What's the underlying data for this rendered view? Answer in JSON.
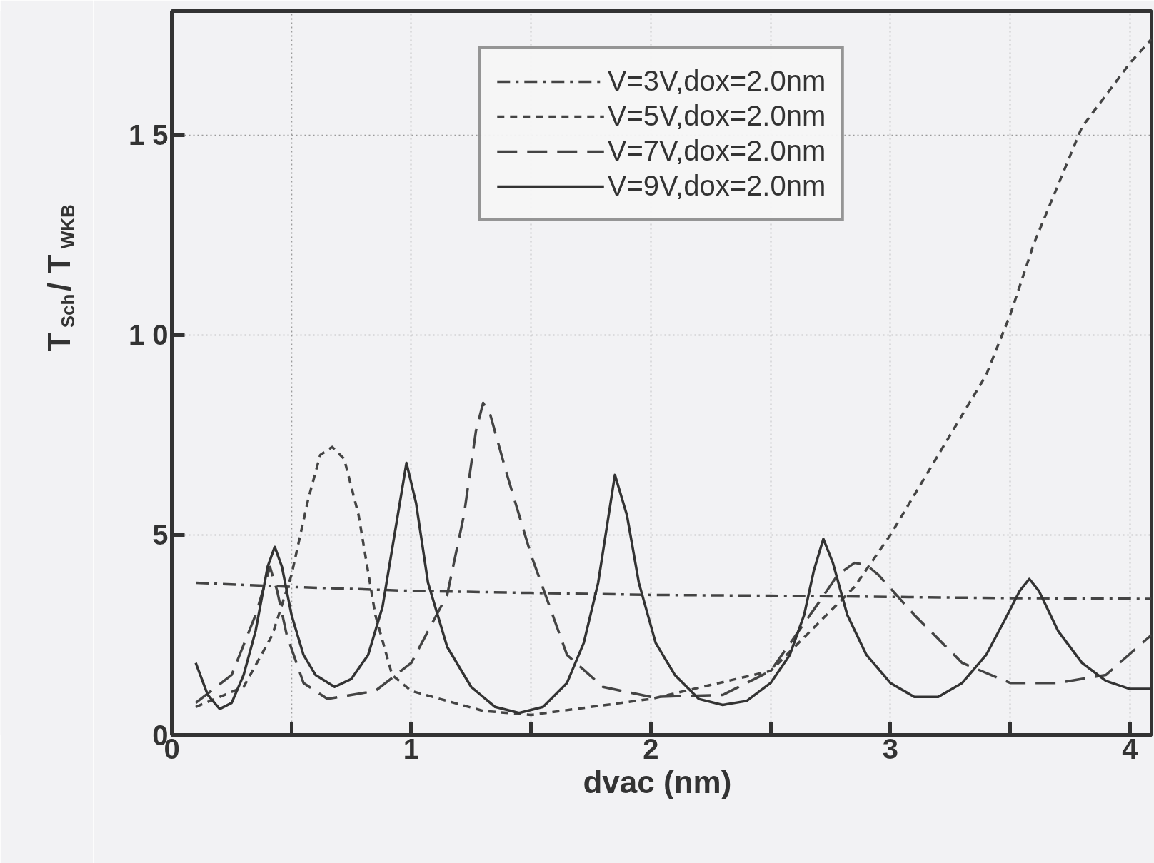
{
  "chart_data": {
    "type": "line",
    "xlabel": "dvac  (nm)",
    "ylabel": "T$_{Sch}$/ T$_{WKB}$",
    "xlim": [
      0,
      4.09
    ],
    "ylim": [
      0,
      18.1
    ],
    "xticks": [
      0,
      {
        "value": 0.5,
        "label": null
      },
      1,
      {
        "value": 1.5,
        "label": null
      },
      2,
      {
        "value": 2.5,
        "label": null
      },
      3,
      {
        "value": 3.5,
        "label": null
      },
      4
    ],
    "yticks": [
      0,
      5,
      {
        "value": 10,
        "label": "1 0"
      },
      {
        "value": 15,
        "label": "1 5"
      }
    ],
    "grid": true,
    "legend": "top",
    "marker": "none",
    "series": [
      {
        "name": "V=3V,dox=2.0nm",
        "color": "#444444",
        "line_style": "dashdot",
        "x": [
          0.1,
          0.5,
          1.0,
          1.5,
          2.0,
          2.5,
          3.0,
          3.5,
          4.09
        ],
        "values": [
          3.8,
          3.7,
          3.6,
          3.55,
          3.5,
          3.48,
          3.45,
          3.42,
          3.4
        ]
      },
      {
        "name": "V=5V,dox=2.0nm",
        "color": "#444444",
        "line_style": "dotted",
        "x": [
          0.1,
          0.3,
          0.42,
          0.5,
          0.57,
          0.62,
          0.67,
          0.72,
          0.78,
          0.85,
          0.92,
          1.0,
          1.3,
          1.5,
          2.0,
          2.5,
          2.7,
          2.85,
          3.0,
          3.2,
          3.4,
          3.5,
          3.6,
          3.8,
          4.0,
          4.09
        ],
        "values": [
          0.7,
          1.2,
          2.5,
          4.0,
          5.9,
          7.0,
          7.2,
          6.9,
          5.5,
          3.0,
          1.5,
          1.1,
          0.6,
          0.5,
          0.9,
          1.6,
          2.8,
          3.7,
          5.0,
          7.0,
          9.0,
          10.5,
          12.3,
          15.2,
          16.8,
          17.4
        ]
      },
      {
        "name": "V=7V,dox=2.0nm",
        "color": "#444444",
        "line_style": "dashed",
        "x": [
          0.1,
          0.25,
          0.35,
          0.38,
          0.41,
          0.44,
          0.48,
          0.55,
          0.65,
          0.85,
          1.0,
          1.15,
          1.22,
          1.27,
          1.3,
          1.33,
          1.4,
          1.5,
          1.65,
          1.8,
          2.0,
          2.3,
          2.5,
          2.7,
          2.78,
          2.85,
          2.9,
          2.95,
          3.1,
          3.3,
          3.5,
          3.7,
          3.9,
          4.09
        ],
        "values": [
          0.8,
          1.5,
          3.0,
          3.6,
          4.2,
          3.6,
          2.5,
          1.3,
          0.9,
          1.1,
          1.8,
          3.5,
          5.5,
          7.6,
          8.3,
          8.0,
          6.5,
          4.5,
          2.0,
          1.2,
          0.95,
          1.0,
          1.6,
          3.3,
          4.0,
          4.3,
          4.25,
          4.0,
          3.0,
          1.8,
          1.3,
          1.3,
          1.5,
          2.5
        ]
      },
      {
        "name": "V=9V,dox=2.0nm",
        "color": "#333333",
        "line_style": "solid",
        "x": [
          0.1,
          0.15,
          0.2,
          0.25,
          0.3,
          0.35,
          0.4,
          0.43,
          0.46,
          0.5,
          0.55,
          0.6,
          0.68,
          0.75,
          0.82,
          0.88,
          0.93,
          0.98,
          1.02,
          1.07,
          1.15,
          1.25,
          1.35,
          1.45,
          1.55,
          1.65,
          1.72,
          1.78,
          1.85,
          1.9,
          1.95,
          2.02,
          2.1,
          2.2,
          2.3,
          2.4,
          2.5,
          2.58,
          2.64,
          2.68,
          2.72,
          2.76,
          2.82,
          2.9,
          3.0,
          3.1,
          3.2,
          3.3,
          3.4,
          3.48,
          3.54,
          3.58,
          3.62,
          3.7,
          3.8,
          3.9,
          4.0,
          4.09
        ],
        "values": [
          1.8,
          1.0,
          0.65,
          0.8,
          1.5,
          2.6,
          4.2,
          4.7,
          4.2,
          3.0,
          2.0,
          1.5,
          1.2,
          1.4,
          2.0,
          3.2,
          5.0,
          6.8,
          5.8,
          3.8,
          2.2,
          1.2,
          0.7,
          0.55,
          0.7,
          1.3,
          2.3,
          3.8,
          6.5,
          5.5,
          3.8,
          2.3,
          1.5,
          0.9,
          0.75,
          0.85,
          1.3,
          2.0,
          3.0,
          4.1,
          4.9,
          4.3,
          3.0,
          2.0,
          1.3,
          0.95,
          0.95,
          1.3,
          2.0,
          2.9,
          3.6,
          3.9,
          3.6,
          2.6,
          1.8,
          1.35,
          1.15,
          1.15
        ]
      }
    ]
  }
}
